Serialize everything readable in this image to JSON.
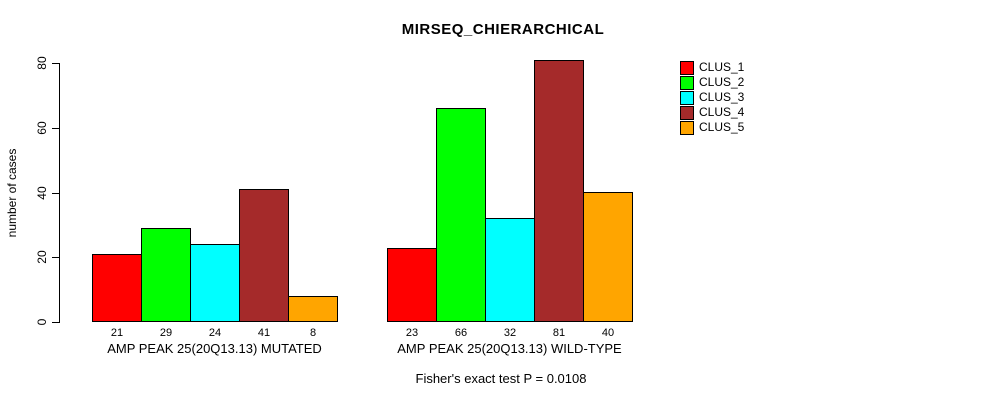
{
  "chart_data": {
    "type": "bar",
    "title": "MIRSEQ_CHIERARCHICAL",
    "ylabel": "number of cases",
    "xlabel": "",
    "annotation": "Fisher's exact test P = 0.0108",
    "ylim": [
      0,
      80
    ],
    "yticks": [
      0,
      20,
      40,
      60,
      80
    ],
    "grid": false,
    "legend_position": "right",
    "bar_value_labels": true,
    "categories": [
      "AMP PEAK 25(20Q13.13) MUTATED",
      "AMP PEAK 25(20Q13.13) WILD-TYPE"
    ],
    "series": [
      {
        "name": "CLUS_1",
        "color": "#FF0000",
        "values": [
          21,
          23
        ]
      },
      {
        "name": "CLUS_2",
        "color": "#00FF00",
        "values": [
          29,
          66
        ]
      },
      {
        "name": "CLUS_3",
        "color": "#00FFFF",
        "values": [
          24,
          32
        ]
      },
      {
        "name": "CLUS_4",
        "color": "#A52A2A",
        "values": [
          41,
          81
        ]
      },
      {
        "name": "CLUS_5",
        "color": "#FFA500",
        "values": [
          8,
          40
        ]
      }
    ]
  }
}
